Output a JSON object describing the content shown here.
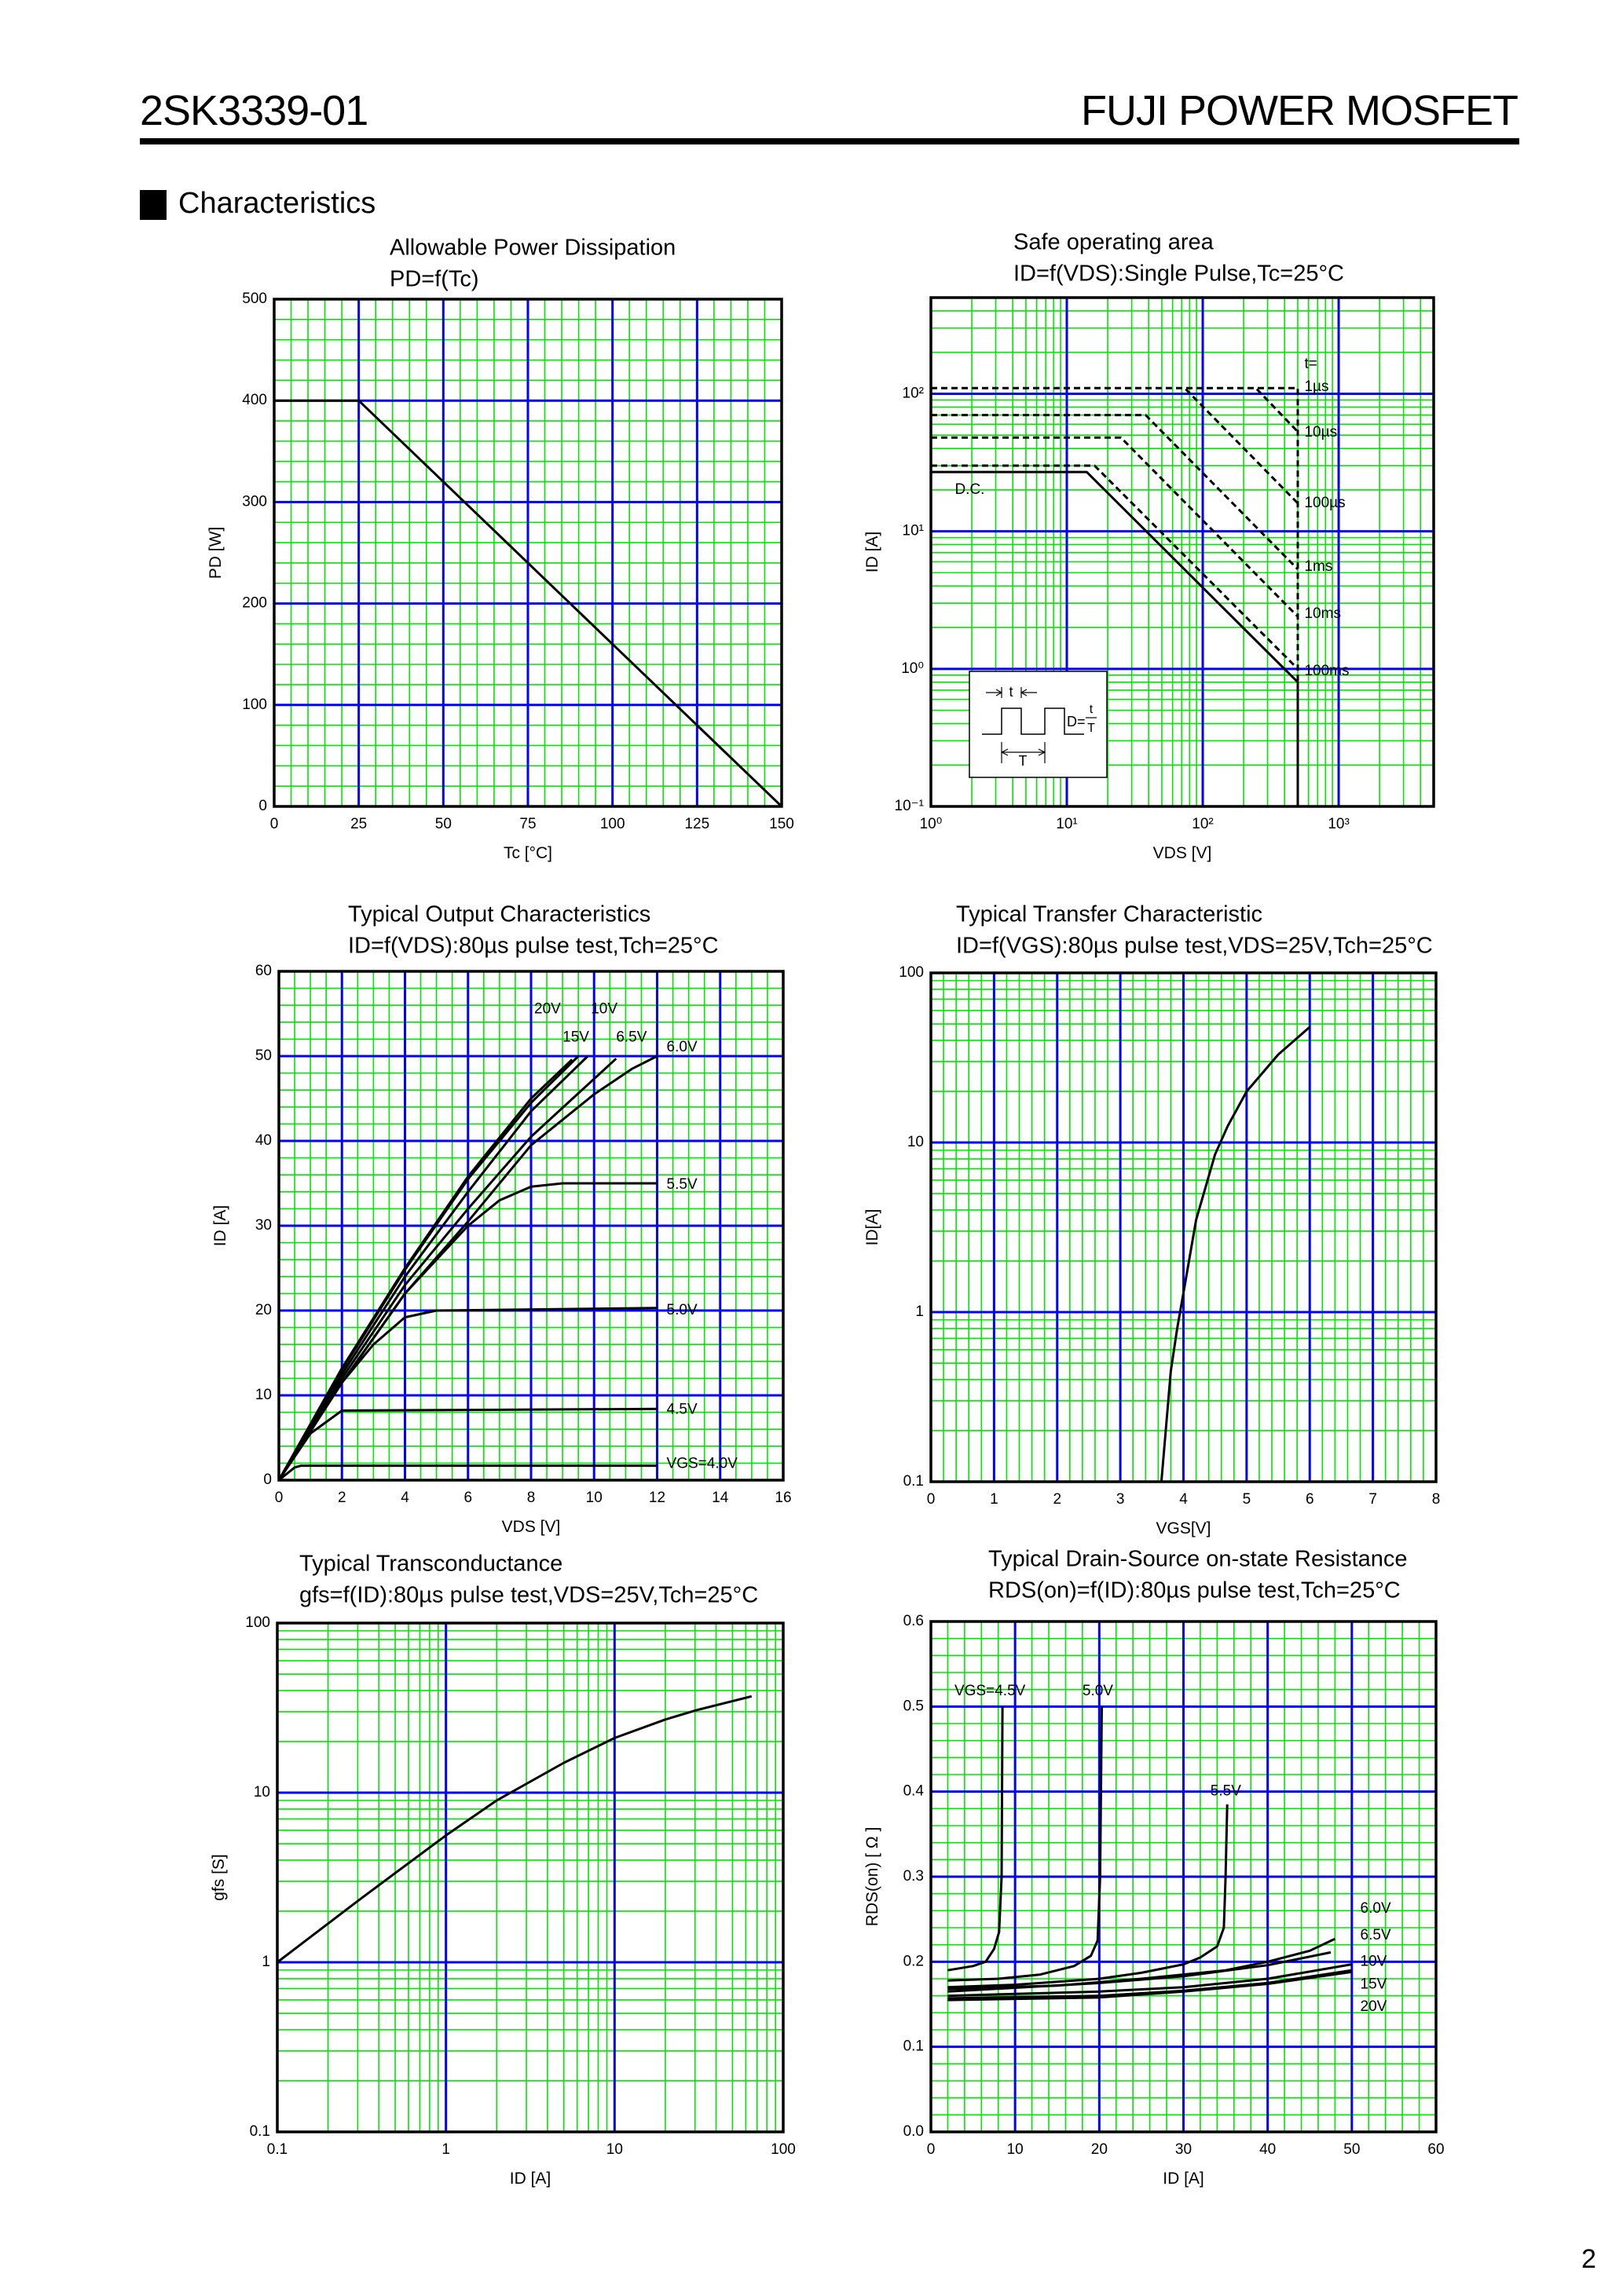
{
  "header": {
    "part_number": "2SK3339-01",
    "manufacturer": "FUJI POWER MOSFET"
  },
  "section": {
    "title": "Characteristics"
  },
  "page_number": "2",
  "colors": {
    "major_grid": "#0000ff",
    "minor_grid": "#00e600",
    "curve": "#000000"
  },
  "soa_inset": {
    "t": "t",
    "T": "T",
    "duty": "D=",
    "ratio_num": "t",
    "ratio_den": "T"
  },
  "chart_data": [
    {
      "type": "line",
      "title": "Allowable Power Dissipation",
      "subtitle": "PD=f(Tc)",
      "xlabel": "Tc [°C]",
      "ylabel": "PD [W]",
      "xscale": "linear",
      "yscale": "linear",
      "xlim": [
        0,
        150
      ],
      "ylim": [
        0,
        500
      ],
      "x_major": 25,
      "x_minor": 5,
      "y_major": 100,
      "y_minor": 20,
      "grid": true,
      "x_ticks": [
        0,
        25,
        50,
        75,
        100,
        125,
        150
      ],
      "x_tick_labels": [
        "0",
        "25",
        "50",
        "75",
        "100",
        "125",
        "150"
      ],
      "y_ticks": [
        0,
        100,
        200,
        300,
        400,
        500
      ],
      "y_tick_labels": [
        "0",
        "100",
        "200",
        "300",
        "400",
        "500"
      ],
      "series": [
        {
          "style": "solid",
          "points": [
            [
              0,
              400
            ],
            [
              25,
              400
            ],
            [
              150,
              0
            ]
          ]
        }
      ]
    },
    {
      "type": "line",
      "title": "Safe operating area",
      "subtitle": "ID=f(VDS):Single Pulse,Tc=25°C",
      "xlabel": "VDS [V]",
      "ylabel": "ID [A]",
      "xscale": "log",
      "yscale": "log",
      "xlim": [
        1,
        5000
      ],
      "ylim": [
        0.1,
        500
      ],
      "grid": true,
      "x_ticks": [
        1,
        10,
        100,
        1000
      ],
      "x_tick_labels": [
        "10⁰",
        "10¹",
        "10²",
        "10³"
      ],
      "y_ticks": [
        0.1,
        1,
        10,
        100
      ],
      "y_tick_labels": [
        "10⁻¹",
        "10⁰",
        "10¹",
        "10²"
      ],
      "series": [
        {
          "name": "D.C.",
          "style": "solid",
          "points": [
            [
              1,
              27
            ],
            [
              14,
              27
            ],
            [
              500,
              0.8
            ],
            [
              500,
              0.1
            ]
          ]
        },
        {
          "name": "100ms",
          "style": "dashed",
          "points": [
            [
              1,
              30
            ],
            [
              16,
              30
            ],
            [
              500,
              1.0
            ]
          ]
        },
        {
          "name": "10ms",
          "style": "dashed",
          "points": [
            [
              1,
              48
            ],
            [
              25,
              48
            ],
            [
              500,
              2.4
            ]
          ]
        },
        {
          "name": "1ms",
          "style": "dashed",
          "points": [
            [
              1,
              70
            ],
            [
              38,
              70
            ],
            [
              500,
              5.3
            ]
          ]
        },
        {
          "name": "100µs",
          "style": "dashed",
          "points": [
            [
              75,
              108
            ],
            [
              500,
              16
            ]
          ]
        },
        {
          "name": "10µs",
          "style": "dashed",
          "points": [
            [
              250,
              108
            ],
            [
              500,
              53
            ]
          ]
        },
        {
          "name": "1µs",
          "style": "dashed",
          "points": [
            [
              1,
              110
            ],
            [
              500,
              110
            ],
            [
              500,
              0.1
            ]
          ]
        }
      ],
      "legend_prefix": "t="
    },
    {
      "type": "line",
      "title": "Typical Output Characteristics",
      "subtitle": "ID=f(VDS):80µs pulse test,Tch=25°C",
      "xlabel": "VDS [V]",
      "ylabel": "ID [A]",
      "xscale": "linear",
      "yscale": "linear",
      "xlim": [
        0,
        16
      ],
      "ylim": [
        0,
        60
      ],
      "x_major": 2,
      "x_minor": 0.5,
      "y_major": 10,
      "y_minor": 2,
      "grid": true,
      "x_ticks": [
        0,
        2,
        4,
        6,
        8,
        10,
        12,
        14,
        16
      ],
      "x_tick_labels": [
        "0",
        "2",
        "4",
        "6",
        "8",
        "10",
        "12",
        "14",
        "16"
      ],
      "y_ticks": [
        0,
        10,
        20,
        30,
        40,
        50,
        60
      ],
      "y_tick_labels": [
        "0",
        "10",
        "20",
        "30",
        "40",
        "50",
        "60"
      ],
      "series": [
        {
          "name": "20V",
          "style": "solid",
          "points": [
            [
              0,
              0
            ],
            [
              2,
              13.2
            ],
            [
              4,
              25
            ],
            [
              6,
              35.8
            ],
            [
              8,
              45
            ],
            [
              9.3,
              49.6
            ]
          ]
        },
        {
          "name": "10V",
          "style": "solid",
          "points": [
            [
              0,
              0
            ],
            [
              2,
              12.5
            ],
            [
              4,
              24
            ],
            [
              6,
              34
            ],
            [
              8,
              43.5
            ],
            [
              9.8,
              50
            ]
          ]
        },
        {
          "name": "15V",
          "style": "solid",
          "points": [
            [
              0,
              0
            ],
            [
              2,
              13
            ],
            [
              4,
              24.8
            ],
            [
              6,
              35.5
            ],
            [
              8,
              44.5
            ],
            [
              9.5,
              50
            ]
          ]
        },
        {
          "name": "6.5V",
          "style": "solid",
          "points": [
            [
              0,
              0
            ],
            [
              2,
              12
            ],
            [
              4,
              23
            ],
            [
              6,
              32
            ],
            [
              8,
              40.5
            ],
            [
              10.7,
              49.7
            ]
          ]
        },
        {
          "name": "6.0V",
          "style": "solid",
          "points": [
            [
              0,
              0
            ],
            [
              2,
              11.5
            ],
            [
              4,
              22
            ],
            [
              6,
              30.5
            ],
            [
              8,
              39.5
            ],
            [
              10,
              45.5
            ],
            [
              11.2,
              48.5
            ],
            [
              12,
              50
            ]
          ]
        },
        {
          "name": "5.5V",
          "style": "solid",
          "points": [
            [
              0,
              0
            ],
            [
              2,
              11.5
            ],
            [
              4,
              22
            ],
            [
              6,
              30
            ],
            [
              7,
              33
            ],
            [
              8,
              34.6
            ],
            [
              9,
              35
            ],
            [
              12,
              35
            ]
          ]
        },
        {
          "name": "5.0V",
          "style": "solid",
          "points": [
            [
              0,
              0
            ],
            [
              1,
              6
            ],
            [
              2,
              11.5
            ],
            [
              3,
              16
            ],
            [
              4,
              19.2
            ],
            [
              5,
              20
            ],
            [
              12,
              20.3
            ]
          ]
        },
        {
          "name": "4.5V",
          "style": "solid",
          "points": [
            [
              0,
              0
            ],
            [
              1,
              5.5
            ],
            [
              2,
              8.2
            ],
            [
              12,
              8.4
            ]
          ]
        },
        {
          "name": "VGS=4.0V",
          "style": "solid",
          "points": [
            [
              0,
              0
            ],
            [
              0.5,
              1.5
            ],
            [
              0.7,
              1.7
            ],
            [
              12,
              1.7
            ]
          ]
        }
      ]
    },
    {
      "type": "line",
      "title": "Typical Transfer Characteristic",
      "subtitle": "ID=f(VGS):80µs pulse test,VDS=25V,Tch=25°C",
      "xlabel": "VGS[V]",
      "ylabel": "ID[A]",
      "xscale": "linear",
      "yscale": "log",
      "xlim": [
        0,
        8
      ],
      "ylim": [
        0.1,
        100
      ],
      "x_major": 1,
      "x_minor": 0.2,
      "grid": true,
      "x_ticks": [
        0,
        1,
        2,
        3,
        4,
        5,
        6,
        7,
        8
      ],
      "x_tick_labels": [
        "0",
        "1",
        "2",
        "3",
        "4",
        "5",
        "6",
        "7",
        "8"
      ],
      "y_ticks": [
        0.1,
        1,
        10,
        100
      ],
      "y_tick_labels": [
        "0.1",
        "1",
        "10",
        "100"
      ],
      "series": [
        {
          "style": "solid",
          "points": [
            [
              3.65,
              0.1
            ],
            [
              3.8,
              0.45
            ],
            [
              3.9,
              0.8
            ],
            [
              4,
              1.3
            ],
            [
              4.2,
              3.5
            ],
            [
              4.5,
              8.5
            ],
            [
              4.7,
              12.5
            ],
            [
              5,
              20
            ],
            [
              5.5,
              33
            ],
            [
              6,
              48
            ]
          ]
        }
      ]
    },
    {
      "type": "line",
      "title": "Typical Transconductance",
      "subtitle": "gfs=f(ID):80µs pulse test,VDS=25V,Tch=25°C",
      "xlabel": "ID [A]",
      "ylabel": "gfs [S]",
      "xscale": "log",
      "yscale": "log",
      "xlim": [
        0.1,
        100
      ],
      "ylim": [
        0.1,
        100
      ],
      "grid": true,
      "x_ticks": [
        0.1,
        1,
        10,
        100
      ],
      "x_tick_labels": [
        "0.1",
        "1",
        "10",
        "100"
      ],
      "y_ticks": [
        0.1,
        1,
        10,
        100
      ],
      "y_tick_labels": [
        "0.1",
        "1",
        "10",
        "100"
      ],
      "series": [
        {
          "style": "solid",
          "points": [
            [
              0.1,
              1
            ],
            [
              0.3,
              2.3
            ],
            [
              1,
              5.6
            ],
            [
              2,
              9
            ],
            [
              5,
              15
            ],
            [
              10,
              21
            ],
            [
              20,
              27
            ],
            [
              30,
              30.5
            ],
            [
              65,
              37
            ]
          ]
        }
      ]
    },
    {
      "type": "line",
      "title": "Typical Drain-Source on-state Resistance",
      "subtitle": "RDS(on)=f(ID):80µs pulse test,Tch=25°C",
      "xlabel": "ID [A]",
      "ylabel": "RDS(on) [ Ω ]",
      "xscale": "linear",
      "yscale": "linear",
      "xlim": [
        0,
        60
      ],
      "ylim": [
        0,
        0.6
      ],
      "x_major": 10,
      "x_minor": 2,
      "y_major": 0.1,
      "y_minor": 0.02,
      "grid": true,
      "x_ticks": [
        0,
        10,
        20,
        30,
        40,
        50,
        60
      ],
      "x_tick_labels": [
        "0",
        "10",
        "20",
        "30",
        "40",
        "50",
        "60"
      ],
      "y_ticks": [
        0,
        0.1,
        0.2,
        0.3,
        0.4,
        0.5,
        0.6
      ],
      "y_tick_labels": [
        "0.0",
        "0.1",
        "0.2",
        "0.3",
        "0.4",
        "0.5",
        "0.6"
      ],
      "series": [
        {
          "name": "VGS=4.5V",
          "style": "solid",
          "points": [
            [
              2,
              0.19
            ],
            [
              5,
              0.195
            ],
            [
              6.5,
              0.2
            ],
            [
              7.5,
              0.215
            ],
            [
              8.1,
              0.235
            ],
            [
              8.4,
              0.3
            ],
            [
              8.5,
              0.5
            ]
          ]
        },
        {
          "name": "5.0V",
          "style": "solid",
          "points": [
            [
              2,
              0.178
            ],
            [
              8,
              0.18
            ],
            [
              13,
              0.185
            ],
            [
              17,
              0.195
            ],
            [
              19,
              0.207
            ],
            [
              19.8,
              0.225
            ],
            [
              20.1,
              0.3
            ],
            [
              20.3,
              0.5
            ]
          ]
        },
        {
          "name": "5.5V",
          "style": "solid",
          "points": [
            [
              2,
              0.17
            ],
            [
              10,
              0.173
            ],
            [
              20,
              0.18
            ],
            [
              25,
              0.187
            ],
            [
              30,
              0.197
            ],
            [
              32,
              0.205
            ],
            [
              34,
              0.218
            ],
            [
              34.8,
              0.24
            ],
            [
              35,
              0.3
            ],
            [
              35.2,
              0.385
            ]
          ]
        },
        {
          "name": "6.0V",
          "style": "solid",
          "points": [
            [
              2,
              0.168
            ],
            [
              15,
              0.172
            ],
            [
              25,
              0.18
            ],
            [
              35,
              0.19
            ],
            [
              40,
              0.2
            ],
            [
              45,
              0.213
            ],
            [
              48,
              0.227
            ]
          ]
        },
        {
          "name": "6.5V",
          "style": "solid",
          "points": [
            [
              2,
              0.165
            ],
            [
              20,
              0.175
            ],
            [
              30,
              0.183
            ],
            [
              40,
              0.196
            ],
            [
              47.5,
              0.211
            ]
          ]
        },
        {
          "name": "10V",
          "style": "solid",
          "points": [
            [
              2,
              0.16
            ],
            [
              20,
              0.165
            ],
            [
              30,
              0.17
            ],
            [
              40,
              0.18
            ],
            [
              50,
              0.197
            ]
          ]
        },
        {
          "name": "15V",
          "style": "solid",
          "points": [
            [
              2,
              0.157
            ],
            [
              20,
              0.16
            ],
            [
              30,
              0.166
            ],
            [
              40,
              0.175
            ],
            [
              50,
              0.19
            ]
          ]
        },
        {
          "name": "20V",
          "style": "solid",
          "points": [
            [
              2,
              0.155
            ],
            [
              20,
              0.158
            ],
            [
              30,
              0.165
            ],
            [
              40,
              0.174
            ],
            [
              50,
              0.188
            ]
          ]
        }
      ]
    }
  ]
}
